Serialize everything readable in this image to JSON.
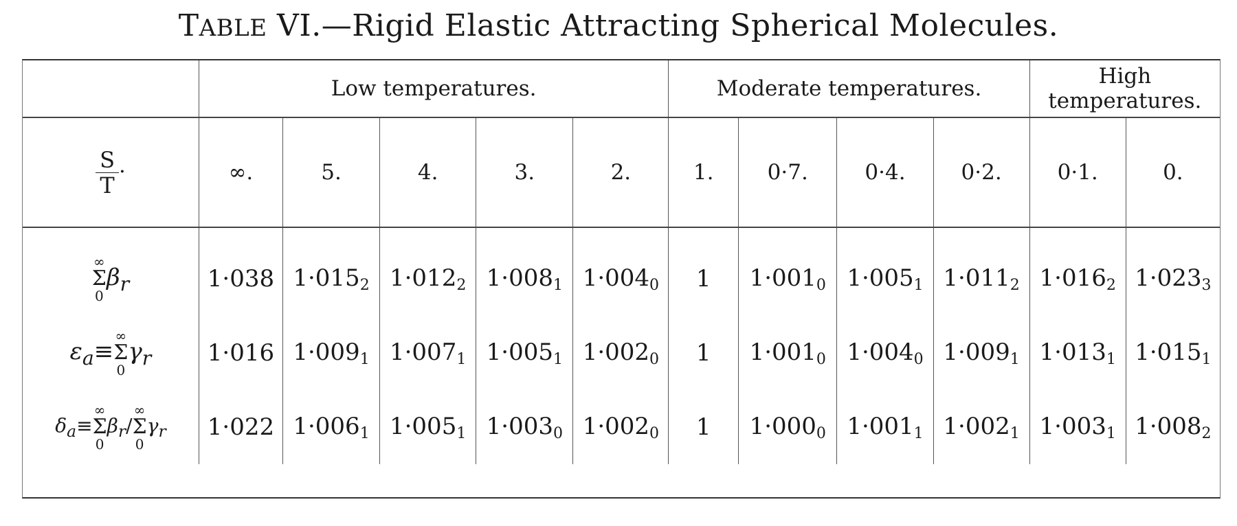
{
  "title": {
    "prefix_big": "T",
    "prefix_small": "ABLE",
    "rest": " VI.—Rigid Elastic Attracting Spherical Molecules."
  },
  "groups": [
    "Low temperatures.",
    "Moderate temperatures.",
    "High temperatures."
  ],
  "stub": {
    "st_num": "S",
    "st_den": "T",
    "st_dot": "·",
    "row1": {
      "sup": "∞",
      "sig": "Σ",
      "sub": "0",
      "rest": "β",
      "rest_sub": "r"
    },
    "row2": {
      "lhs": "ε",
      "lhs_sub": "a",
      "eq": "≡",
      "sup": "∞",
      "sig": "Σ",
      "sub": "0",
      "rest": "γ",
      "rest_sub": "r"
    },
    "row3": {
      "lhs": "δ",
      "lhs_sub": "a",
      "eq": "≡",
      "sup1": "∞",
      "sig1": "Σ",
      "sub1": "0",
      "mid": "β",
      "mid_sub": "r",
      "slash": "/",
      "sup2": "∞",
      "sig2": "Σ",
      "sub2": "0",
      "rest": "γ",
      "rest_sub": "r"
    }
  },
  "columns": [
    "∞.",
    "5.",
    "4.",
    "3.",
    "2.",
    "1.",
    "0·7.",
    "0·4.",
    "0·2.",
    "0·1.",
    "0."
  ],
  "rows": [
    {
      "cells": [
        {
          "v": "1·038",
          "s": ""
        },
        {
          "v": "1·015",
          "s": "2"
        },
        {
          "v": "1·012",
          "s": "2"
        },
        {
          "v": "1·008",
          "s": "1"
        },
        {
          "v": "1·004",
          "s": "0"
        },
        {
          "v": "1",
          "s": ""
        },
        {
          "v": "1·001",
          "s": "0"
        },
        {
          "v": "1·005",
          "s": "1"
        },
        {
          "v": "1·011",
          "s": "2"
        },
        {
          "v": "1·016",
          "s": "2"
        },
        {
          "v": "1·023",
          "s": "3"
        }
      ]
    },
    {
      "cells": [
        {
          "v": "1·016",
          "s": ""
        },
        {
          "v": "1·009",
          "s": "1"
        },
        {
          "v": "1·007",
          "s": "1"
        },
        {
          "v": "1·005",
          "s": "1"
        },
        {
          "v": "1·002",
          "s": "0"
        },
        {
          "v": "1",
          "s": ""
        },
        {
          "v": "1·001",
          "s": "0"
        },
        {
          "v": "1·004",
          "s": "0"
        },
        {
          "v": "1·009",
          "s": "1"
        },
        {
          "v": "1·013",
          "s": "1"
        },
        {
          "v": "1·015",
          "s": "1"
        }
      ]
    },
    {
      "cells": [
        {
          "v": "1·022",
          "s": ""
        },
        {
          "v": "1·006",
          "s": "1"
        },
        {
          "v": "1·005",
          "s": "1"
        },
        {
          "v": "1·003",
          "s": "0"
        },
        {
          "v": "1·002",
          "s": "0"
        },
        {
          "v": "1",
          "s": ""
        },
        {
          "v": "1·000",
          "s": "0"
        },
        {
          "v": "1·001",
          "s": "1"
        },
        {
          "v": "1·002",
          "s": "1"
        },
        {
          "v": "1·003",
          "s": "1"
        },
        {
          "v": "1·008",
          "s": "2"
        }
      ]
    }
  ]
}
